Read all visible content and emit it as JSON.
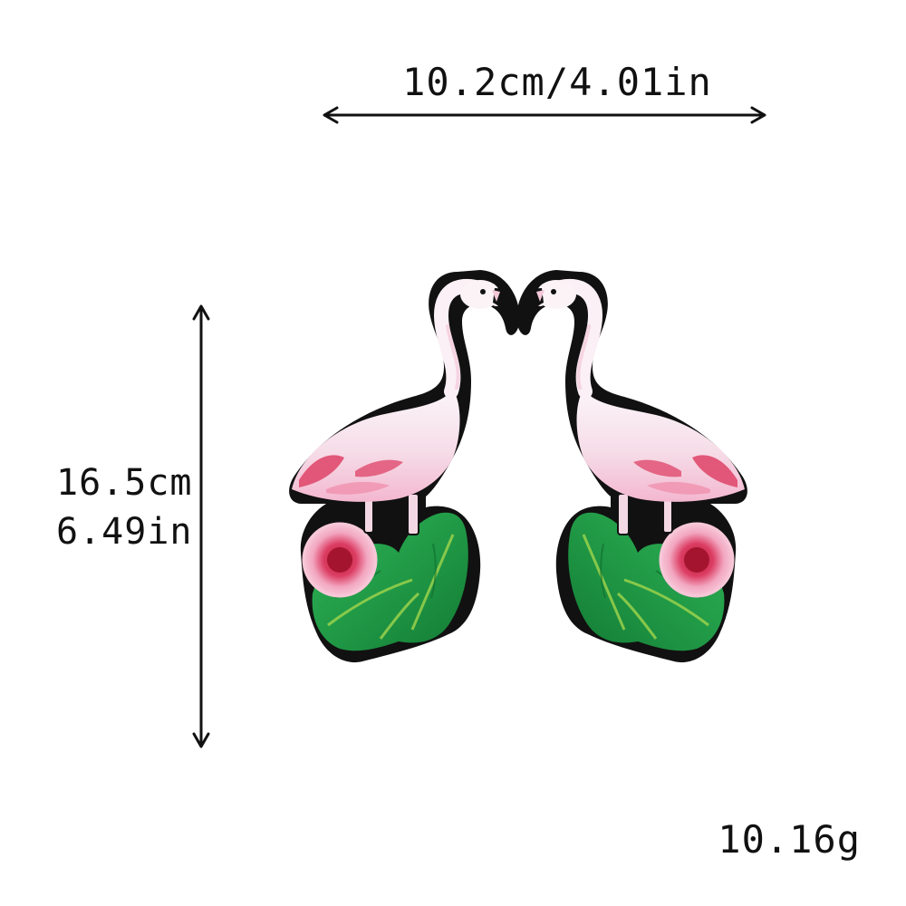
{
  "product": {
    "width_label": "10.2cm/4.01in",
    "height_label_cm": "16.5cm",
    "height_label_in": "6.49in",
    "weight_label": "10.16g"
  },
  "image": {
    "subject": "flamingo-embroidered-patch-pair",
    "colors": {
      "background": "#ffffff",
      "border": "#111111",
      "body_white": "#f6eef2",
      "body_pink": "#f3b7cf",
      "wing_red": "#e04a6e",
      "leaf_green": "#22a04a",
      "leaf_dark": "#137a34",
      "leaf_light": "#9ad24c",
      "flower_pink": "#f2a6c0",
      "flower_center": "#c8283f"
    }
  }
}
